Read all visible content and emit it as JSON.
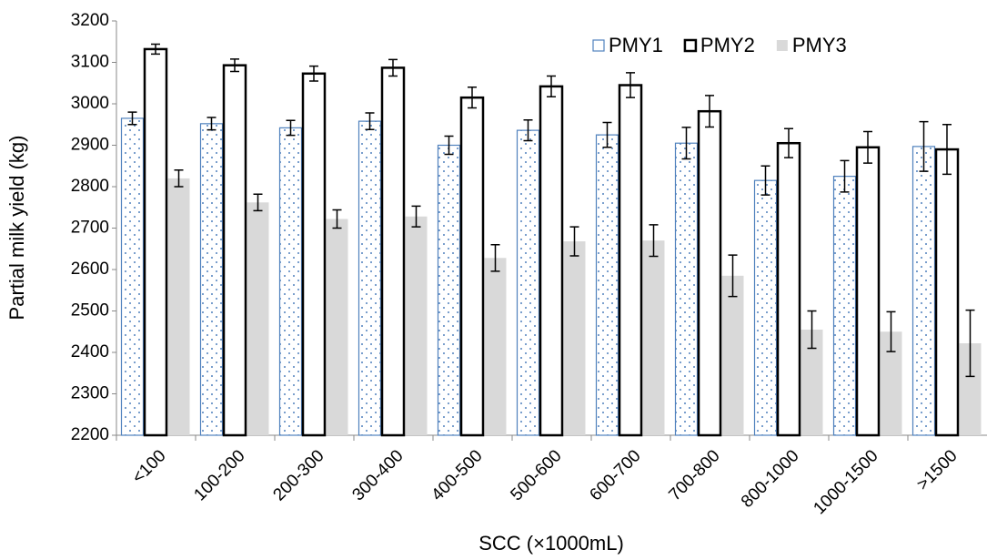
{
  "chart_data": {
    "type": "bar",
    "x_label": "SCC (×1000mL)",
    "y_label": "Partial milk yield (kg)",
    "categories": [
      "<100",
      "100-200",
      "200-300",
      "300-400",
      "400-500",
      "500-600",
      "600-700",
      "700-800",
      "800-1000",
      "1000-1500",
      ">1500"
    ],
    "series": [
      {
        "name": "PMY1",
        "color": "#4f81bd",
        "fill": "dots",
        "values": [
          2965,
          2952,
          2942,
          2958,
          2900,
          2936,
          2925,
          2905,
          2815,
          2825,
          2897
        ],
        "errors": [
          15,
          15,
          18,
          20,
          22,
          25,
          30,
          38,
          35,
          38,
          60
        ]
      },
      {
        "name": "PMY2",
        "color": "#000000",
        "fill": "none",
        "values": [
          3132,
          3093,
          3073,
          3087,
          3015,
          3042,
          3045,
          2982,
          2905,
          2895,
          2890
        ],
        "errors": [
          12,
          15,
          18,
          20,
          25,
          25,
          30,
          38,
          35,
          38,
          60
        ]
      },
      {
        "name": "PMY3",
        "color": "#d9d9d9",
        "fill": "solid",
        "values": [
          2820,
          2762,
          2722,
          2728,
          2628,
          2668,
          2670,
          2585,
          2455,
          2450,
          2422
        ],
        "errors": [
          20,
          20,
          22,
          25,
          32,
          35,
          38,
          50,
          45,
          48,
          80
        ]
      }
    ],
    "ylim": [
      2200,
      3200
    ],
    "yticks": [
      2200,
      2300,
      2400,
      2500,
      2600,
      2700,
      2800,
      2900,
      3000,
      3100,
      3200
    ],
    "legend": "top-right"
  }
}
